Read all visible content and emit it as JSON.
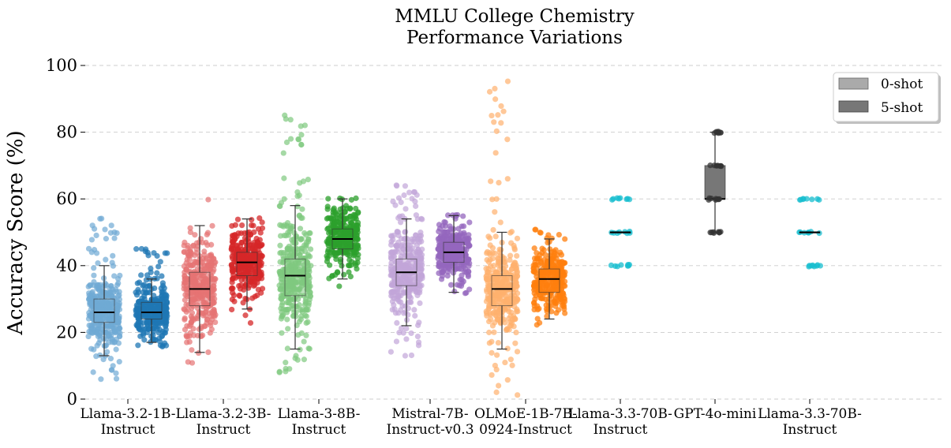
{
  "chart_data": {
    "type": "box",
    "title_lines": [
      "MMLU College Chemistry",
      "Performance Variations"
    ],
    "xlabel": "",
    "ylabel": "Accuracy Score (%)",
    "ylim": [
      0,
      100
    ],
    "yticks": [
      0,
      20,
      40,
      60,
      80,
      100
    ],
    "grid": "horizontal-dashed",
    "legend_position": "upper-right",
    "legend": [
      {
        "label": "0-shot",
        "color": "#aaaaaa"
      },
      {
        "label": "5-shot",
        "color": "#777777"
      }
    ],
    "models": [
      {
        "label_lines": [
          "Llama-3.2-1B-",
          "Instruct"
        ],
        "color_0shot": "#6fa9d4",
        "color_5shot": "#1f77b4",
        "zero_shot": {
          "whislo": 13,
          "q1": 23,
          "med": 26,
          "q3": 30,
          "whishi": 40,
          "min": 6,
          "max": 54
        },
        "five_shot": {
          "whislo": 17,
          "q1": 24,
          "med": 26,
          "q3": 29,
          "whishi": 36,
          "min": 16,
          "max": 45
        }
      },
      {
        "label_lines": [
          "Llama-3.2-3B-",
          "Instruct"
        ],
        "color_0shot": "#e57373",
        "color_5shot": "#d62728",
        "zero_shot": {
          "whislo": 14,
          "q1": 28,
          "med": 33,
          "q3": 38,
          "whishi": 52,
          "min": 11,
          "max": 60
        },
        "five_shot": {
          "whislo": 27,
          "q1": 37,
          "med": 41,
          "q3": 44,
          "whishi": 54,
          "min": 23,
          "max": 54
        }
      },
      {
        "label_lines": [
          "Llama-3-8B-",
          "Instruct"
        ],
        "color_0shot": "#7fc97f",
        "color_5shot": "#2ca02c",
        "zero_shot": {
          "whislo": 15,
          "q1": 31,
          "med": 37,
          "q3": 42,
          "whishi": 58,
          "min": 8,
          "max": 85
        },
        "five_shot": {
          "whislo": 36,
          "q1": 45,
          "med": 48,
          "q3": 51,
          "whishi": 60,
          "min": 34,
          "max": 60
        }
      },
      {
        "label_lines": [
          "Mistral-7B-",
          "Instruct-v0.3"
        ],
        "color_0shot": "#c2a5d8",
        "color_5shot": "#9467bd",
        "zero_shot": {
          "whislo": 22,
          "q1": 34,
          "med": 38,
          "q3": 42,
          "whishi": 54,
          "min": 13,
          "max": 64
        },
        "five_shot": {
          "whislo": 32,
          "q1": 41,
          "med": 44,
          "q3": 47,
          "whishi": 55,
          "min": 32,
          "max": 55
        }
      },
      {
        "label_lines": [
          "OLMoE-1B-7B-",
          "0924-Instruct"
        ],
        "color_0shot": "#ffb06e",
        "color_5shot": "#ff7f0e",
        "zero_shot": {
          "whislo": 15,
          "q1": 28,
          "med": 33,
          "q3": 37,
          "whishi": 50,
          "min": 1,
          "max": 95
        },
        "five_shot": {
          "whislo": 24,
          "q1": 32,
          "med": 36,
          "q3": 39,
          "whishi": 48,
          "min": 22,
          "max": 51
        }
      },
      {
        "label_lines": [
          "Llama-3.3-70B-",
          "Instruct"
        ],
        "color_0shot": "#17becf",
        "color_5shot": "#17becf",
        "single": {
          "whislo": 50,
          "q1": 50,
          "med": 50,
          "q3": 50,
          "whishi": 50,
          "points": [
            40,
            50,
            60
          ]
        }
      },
      {
        "label_lines": [
          "GPT-4o-mini"
        ],
        "color_0shot": "#555555",
        "color_5shot": "#555555",
        "single": {
          "whislo": 50,
          "q1": 60,
          "med": 60,
          "q3": 70,
          "whishi": 80,
          "points": [
            50,
            60,
            70,
            80
          ]
        }
      },
      {
        "label_lines": [
          "Llama-3.3-70B-",
          "Instruct"
        ],
        "color_0shot": "#17becf",
        "color_5shot": "#17becf",
        "single": {
          "whislo": 50,
          "q1": 50,
          "med": 50,
          "q3": 50,
          "whishi": 50,
          "points": [
            40,
            50,
            60
          ]
        }
      }
    ]
  }
}
